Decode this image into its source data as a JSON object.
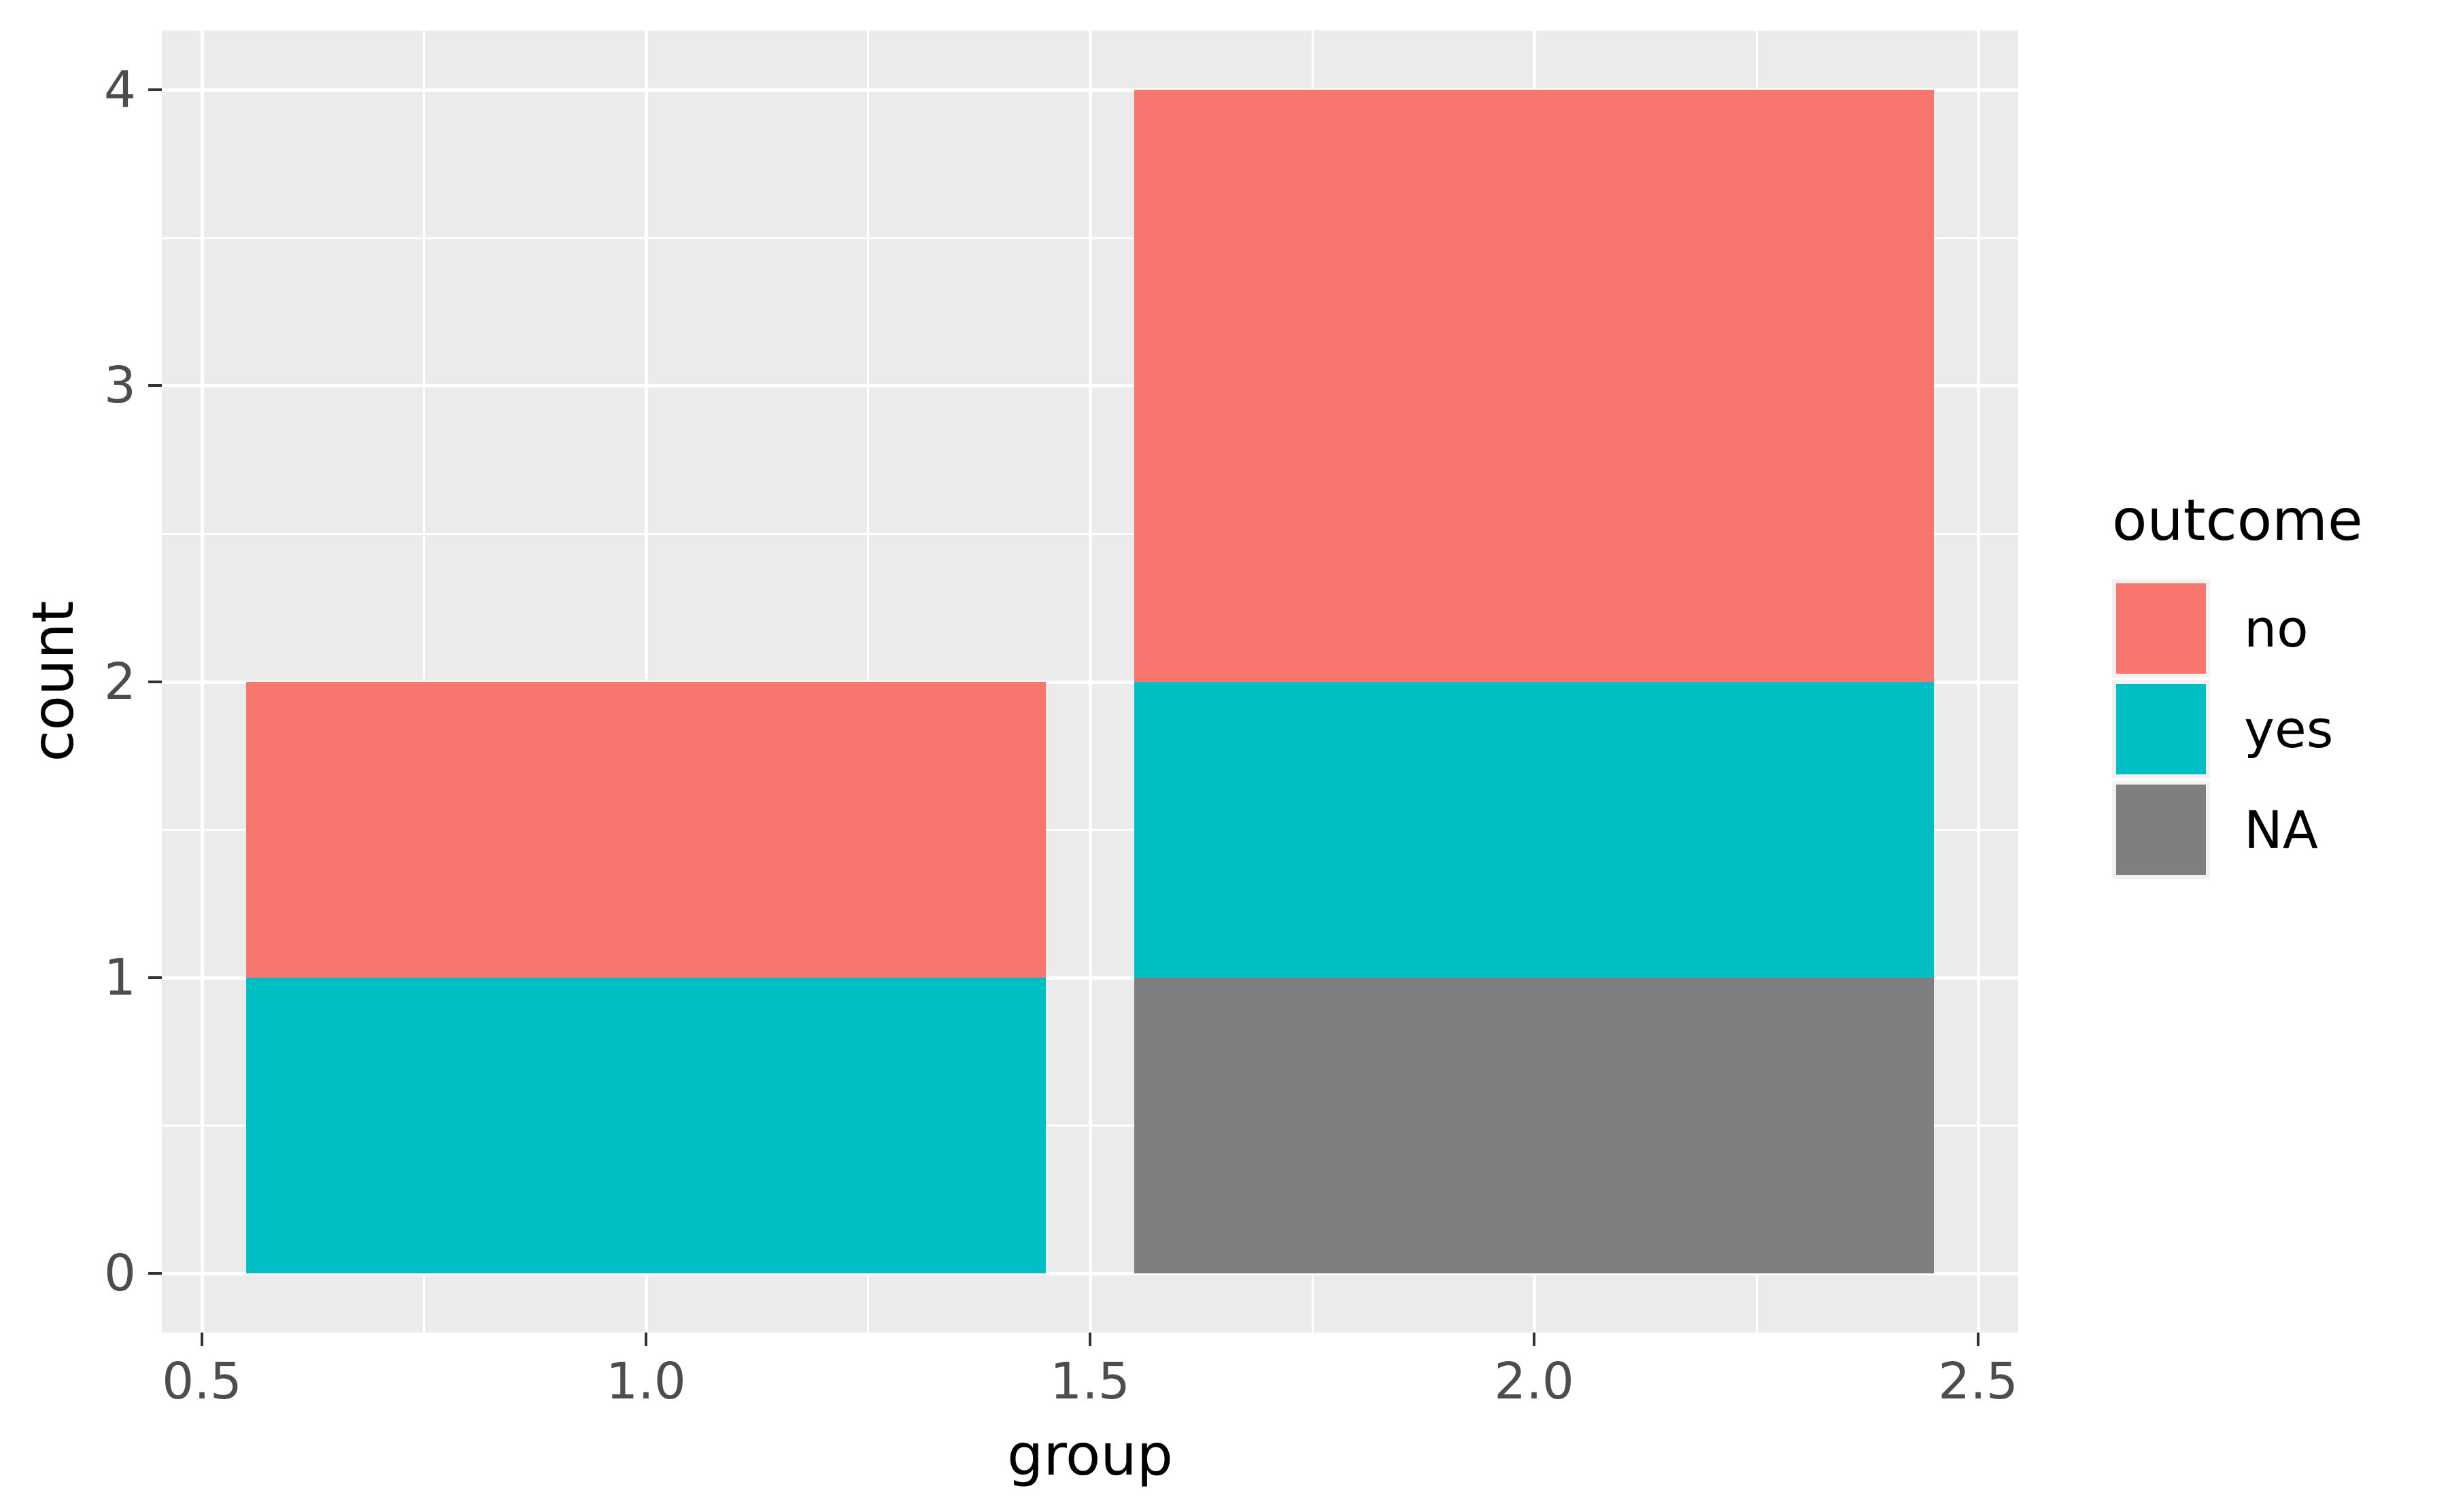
{
  "chart_data": {
    "type": "bar",
    "stacked": true,
    "title": "",
    "xlabel": "group",
    "ylabel": "count",
    "x": [
      1,
      2
    ],
    "bar_width": 0.9,
    "series": [
      {
        "name": "NA",
        "color": "#7F7F7F",
        "values": [
          0,
          1
        ]
      },
      {
        "name": "yes",
        "color": "#00BFC4",
        "values": [
          1,
          1
        ]
      },
      {
        "name": "no",
        "color": "#F8766D",
        "values": [
          1,
          2
        ]
      }
    ],
    "stack_order_bottom_to_top": [
      "NA",
      "yes",
      "no"
    ],
    "xlim": [
      0.455,
      2.545
    ],
    "ylim": [
      -0.2,
      4.2
    ],
    "x_ticks": {
      "values": [
        0.5,
        1.0,
        1.5,
        2.0,
        2.5
      ],
      "labels": [
        "0.5",
        "1.0",
        "1.5",
        "2.0",
        "2.5"
      ]
    },
    "y_ticks": {
      "values": [
        0,
        1,
        2,
        3,
        4
      ],
      "labels": [
        "0",
        "1",
        "2",
        "3",
        "4"
      ]
    },
    "x_minor": [
      0.75,
      1.25,
      1.75,
      2.25
    ],
    "y_minor": [
      0.5,
      1.5,
      2.5,
      3.5
    ],
    "grid": true,
    "legend": {
      "position": "right",
      "title": "outcome",
      "entries": [
        {
          "label": "no",
          "color": "#F8766D"
        },
        {
          "label": "yes",
          "color": "#00BFC4"
        },
        {
          "label": "NA",
          "color": "#7F7F7F"
        }
      ]
    },
    "theme": {
      "panel_background": "#EBEBEB",
      "grid_color": "#FFFFFF",
      "tick_color": "#333333",
      "tick_label_color": "#4D4D4D",
      "title_color": "#000000",
      "legend_key_background": "#F2F2F2",
      "figure_background": "#FFFFFF"
    }
  }
}
